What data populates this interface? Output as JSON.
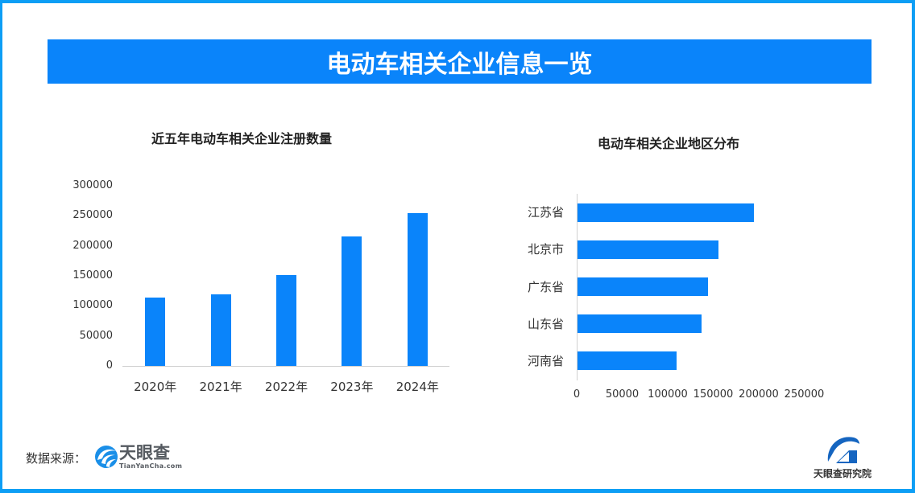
{
  "header": {
    "title": "电动车相关企业信息一览"
  },
  "colors": {
    "frame_border": "#0d9ef5",
    "title_bar": "#0a84fa",
    "bar": "#0a84fa",
    "text": "#333333"
  },
  "left_chart": {
    "title": "近五年电动车相关企业注册数量",
    "y_ticks": [
      "300000",
      "250000",
      "200000",
      "150000",
      "100000",
      "50000",
      "0"
    ],
    "categories": [
      "2020年",
      "2021年",
      "2022年",
      "2023年",
      "2024年"
    ]
  },
  "right_chart": {
    "title": "电动车相关企业地区分布",
    "categories": [
      "江苏省",
      "北京市",
      "广东省",
      "山东省",
      "河南省"
    ],
    "x_ticks": [
      "0",
      "50000",
      "100000",
      "150000",
      "200000",
      "250000"
    ]
  },
  "footer": {
    "source_label": "数据来源：",
    "source_logo_name": "天眼查",
    "source_logo_domain": "TianYanCha.com",
    "institute_name": "天眼查研究院"
  },
  "chart_data": [
    {
      "type": "bar",
      "title": "近五年电动车相关企业注册数量",
      "categories": [
        "2020年",
        "2021年",
        "2022年",
        "2023年",
        "2024年"
      ],
      "values": [
        114000,
        119000,
        152000,
        215000,
        254000
      ],
      "xlabel": "",
      "ylabel": "",
      "ylim": [
        0,
        300000
      ],
      "y_ticks": [
        0,
        50000,
        100000,
        150000,
        200000,
        250000,
        300000
      ],
      "grid": false,
      "legend": "none",
      "color": "#0a84fa"
    },
    {
      "type": "bar",
      "orientation": "horizontal",
      "title": "电动车相关企业地区分布",
      "categories": [
        "江苏省",
        "北京市",
        "广东省",
        "山东省",
        "河南省"
      ],
      "values": [
        194000,
        155000,
        143000,
        136000,
        109000
      ],
      "xlabel": "",
      "ylabel": "",
      "xlim": [
        0,
        250000
      ],
      "x_ticks": [
        0,
        50000,
        100000,
        150000,
        200000,
        250000
      ],
      "grid": false,
      "legend": "none",
      "color": "#0a84fa"
    }
  ]
}
